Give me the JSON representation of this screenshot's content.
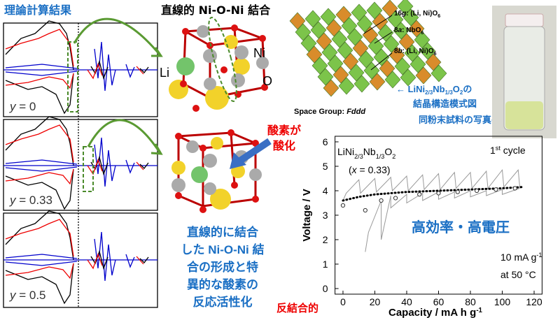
{
  "left_panel": {
    "title": "理論計算結果",
    "labels": [
      {
        "var": "y",
        "text": " = 0"
      },
      {
        "var": "y",
        "text": " = 0.33"
      },
      {
        "var": "y",
        "text": " = 0.5"
      }
    ]
  },
  "middle": {
    "title": "直線的 Ni-O-Ni 結合",
    "atoms": [
      "Li",
      "Ni",
      "O"
    ],
    "oxidation": [
      "酸素が",
      "酸化"
    ],
    "description": [
      "直線的に結合",
      "した Ni-O-Ni 結",
      "合の形成と特",
      "異的な酸素の",
      "反応活性化"
    ],
    "antibonding": "反結合的"
  },
  "structure": {
    "sites": [
      [
        "16",
        "g",
        ": (Li, Ni)O",
        "6"
      ],
      [
        "8",
        "a",
        ": NbO",
        "6"
      ],
      [
        "8",
        "b",
        ": (Li, Ni)O",
        "6"
      ]
    ],
    "space_group": {
      "label": "Space Group: ",
      "value": "Fddd"
    },
    "caption": [
      "← LiNi",
      "2/3",
      "Nb",
      "1/3",
      "O",
      "2",
      "の"
    ],
    "caption2": "結晶構造模式図",
    "photo_caption": "同粉末試料の写真→"
  },
  "chart_data": {
    "type": "line",
    "formula": [
      "LiNi",
      "2/3",
      "Nb",
      "1/3",
      "O",
      "2"
    ],
    "composition": [
      "(",
      "x",
      " = 0.33)"
    ],
    "cycle": [
      "1",
      "st",
      " cycle"
    ],
    "highlight": "高効率・高電圧",
    "rate": [
      "10 mA g",
      "-1"
    ],
    "temperature": "at 50 °C",
    "x_label": [
      "Capacity  /  mA h g",
      "-1"
    ],
    "y_label": "Voltage   /   V",
    "xlim": [
      -5,
      125
    ],
    "xticks": [
      0,
      20,
      40,
      60,
      80,
      100,
      120
    ],
    "ylim": [
      0,
      6
    ],
    "yticks": [
      0,
      1,
      2,
      3,
      4,
      5,
      6
    ],
    "series": [
      {
        "type": "line",
        "color": "#999999",
        "x": [
          0,
          2,
          10,
          11,
          20,
          21,
          30,
          31,
          40,
          41,
          50,
          51,
          60,
          61,
          70,
          71,
          80,
          81,
          90,
          91,
          100,
          101,
          110,
          111
        ],
        "values": [
          3.6,
          3.9,
          4.45,
          3.9,
          4.5,
          3.95,
          4.55,
          4.0,
          4.6,
          4.0,
          4.65,
          4.05,
          4.7,
          4.05,
          4.75,
          4.1,
          4.75,
          4.1,
          4.8,
          4.1,
          4.85,
          4.15,
          4.85,
          4.15
        ]
      },
      {
        "type": "line",
        "color": "#999999",
        "x": [
          111,
          100,
          100,
          90,
          90,
          80,
          80,
          70,
          70,
          60,
          60,
          50,
          50,
          40,
          40,
          30,
          30,
          24,
          24,
          16,
          14
        ],
        "values": [
          4.1,
          3.85,
          4.05,
          3.8,
          4.0,
          3.75,
          4.0,
          3.7,
          3.95,
          3.65,
          3.95,
          3.6,
          3.9,
          3.5,
          3.85,
          3.3,
          3.8,
          2.0,
          3.6,
          2.3,
          1.5
        ]
      },
      {
        "type": "dotted",
        "color": "#000000",
        "x": [
          0,
          10,
          20,
          40,
          60,
          80,
          100,
          112
        ],
        "values": [
          3.6,
          3.75,
          3.85,
          3.95,
          4.0,
          4.05,
          4.1,
          4.15
        ]
      },
      {
        "type": "scatter",
        "color": "#333333",
        "x": [
          0,
          14,
          24,
          33,
          48,
          60,
          72,
          84,
          96,
          108
        ],
        "values": [
          3.4,
          3.2,
          3.6,
          3.7,
          3.85,
          3.9,
          3.95,
          4.0,
          4.05,
          4.1
        ]
      }
    ]
  }
}
